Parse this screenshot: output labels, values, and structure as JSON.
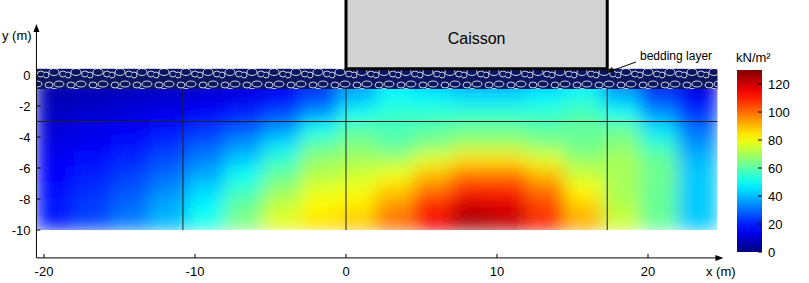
{
  "chart_data": {
    "type": "heatmap",
    "x_label": "x (m)",
    "y_label": "y (m)",
    "xlim": [
      -20.5,
      24.6
    ],
    "ylim": [
      -11.8,
      2.9
    ],
    "xticks": [
      -20,
      -10,
      0,
      10,
      20
    ],
    "yticks": [
      0,
      -2,
      -4,
      -6,
      -8,
      -10
    ],
    "x_bins": [
      -20.5,
      -18,
      -15.5,
      -13,
      -10.5,
      -8,
      -5.5,
      -3,
      -0.5,
      2,
      4.5,
      7,
      9.5,
      12,
      14.5,
      17,
      19.5,
      22,
      24.6
    ],
    "y_bins": [
      0,
      -1,
      -2,
      -3,
      -4,
      -5,
      -6,
      -7,
      -8,
      -9,
      -10
    ],
    "cells": [
      [
        5,
        6,
        7,
        8,
        9,
        10,
        12,
        18,
        35,
        45,
        40,
        35,
        35,
        40,
        45,
        30,
        15,
        10
      ],
      [
        7,
        8,
        9,
        10,
        12,
        14,
        17,
        25,
        40,
        50,
        48,
        45,
        45,
        48,
        52,
        40,
        25,
        15
      ],
      [
        9,
        10,
        12,
        14,
        16,
        20,
        25,
        35,
        50,
        55,
        55,
        55,
        55,
        55,
        58,
        50,
        35,
        22
      ],
      [
        11,
        13,
        15,
        18,
        22,
        27,
        35,
        50,
        60,
        58,
        60,
        62,
        62,
        60,
        62,
        62,
        45,
        30
      ],
      [
        13,
        15,
        18,
        22,
        28,
        35,
        45,
        60,
        65,
        60,
        65,
        70,
        70,
        66,
        62,
        66,
        55,
        35
      ],
      [
        15,
        18,
        21,
        26,
        33,
        42,
        55,
        68,
        70,
        70,
        78,
        85,
        85,
        78,
        68,
        70,
        62,
        40
      ],
      [
        17,
        20,
        24,
        30,
        38,
        50,
        62,
        72,
        75,
        80,
        90,
        100,
        100,
        90,
        75,
        70,
        63,
        42
      ],
      [
        18,
        22,
        27,
        34,
        44,
        56,
        68,
        78,
        80,
        88,
        100,
        110,
        110,
        100,
        82,
        70,
        62,
        42
      ],
      [
        19,
        24,
        30,
        38,
        48,
        62,
        74,
        82,
        84,
        95,
        110,
        120,
        118,
        105,
        88,
        72,
        62,
        42
      ],
      [
        20,
        25,
        32,
        40,
        52,
        65,
        78,
        85,
        88,
        100,
        115,
        126,
        122,
        110,
        92,
        75,
        62,
        42
      ]
    ],
    "colorbar": {
      "label": "kN/m²",
      "range": [
        0,
        130
      ],
      "ticks": [
        0,
        20,
        40,
        60,
        80,
        100,
        120
      ]
    },
    "mesh_x": [
      -10.8,
      0,
      17.3
    ],
    "mesh_y": [
      -3
    ],
    "caisson": {
      "label": "Caisson",
      "x": [
        0,
        17.3
      ]
    },
    "bedding_layer": {
      "label": "bedding layer",
      "y": [
        -0.9,
        0.4
      ]
    }
  }
}
